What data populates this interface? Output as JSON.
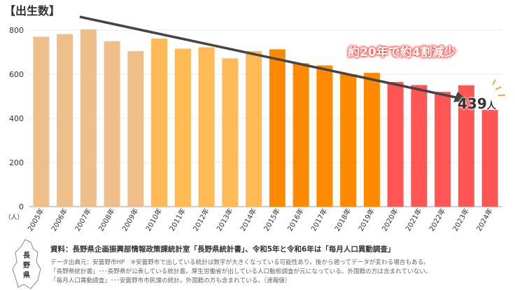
{
  "title": "【出生数】",
  "callout": "約20年で約4割減少",
  "last_value": "439",
  "last_unit": "人",
  "map_label": "長野県",
  "source": "資料：長野県企画振興部情報政策課統計室「長野県統計書」、令和5年と令和6年は「毎月人口異動調査」",
  "notes": [
    "データ出典元：安曇野市HP　※安曇野市で出している統計は数字が大きくなっている可能性あり。後から遡ってデータが変わる場合もある。",
    "「長野県統計書」･･･長野県が公表している統計書。厚生労働省が出している人口動態調査が元になっている。外国籍の方は含まれていない。",
    "「毎月人口異動調査」･･･安曇野市市民課の統計。外国籍の方も含まれている。（速報値）"
  ],
  "chart_data": {
    "type": "bar",
    "title": "【出生数】",
    "ylabel": "（人）",
    "ylim": [
      0,
      800
    ],
    "yticks": [
      0,
      200,
      400,
      600,
      800
    ],
    "categories": [
      "2005年",
      "2006年",
      "2007年",
      "2008年",
      "2009年",
      "2010年",
      "2011年",
      "2012年",
      "2013年",
      "2014年",
      "2015年",
      "2016年",
      "2017年",
      "2018年",
      "2019年",
      "2020年",
      "2021年",
      "2022年",
      "2023年",
      "2024年"
    ],
    "values": [
      770,
      782,
      803,
      750,
      705,
      762,
      716,
      722,
      672,
      705,
      713,
      650,
      640,
      600,
      606,
      565,
      551,
      520,
      550,
      439
    ],
    "colors": [
      "#EFBF8A",
      "#EFBF8A",
      "#EFBF8A",
      "#EFBF8A",
      "#EFBF8A",
      "#FFB955",
      "#FFB955",
      "#FFB955",
      "#FFB955",
      "#FFB955",
      "#FF8A00",
      "#FF8A00",
      "#FF8A00",
      "#FF8A00",
      "#FF8A00",
      "#FF5555",
      "#FF5555",
      "#FF5555",
      "#FF5555",
      "#FF5555"
    ],
    "grid": true
  }
}
